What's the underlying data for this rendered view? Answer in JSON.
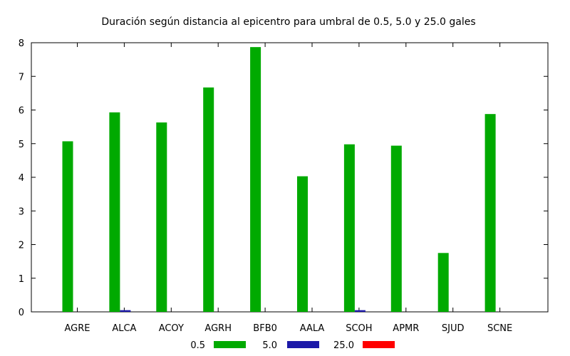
{
  "chart_data": {
    "type": "bar",
    "title": "Duración según distancia al epicentro para umbral de 0.5, 5.0 y 25.0 gales",
    "xlabel": "",
    "ylabel": "",
    "categories": [
      "AGRE",
      "ALCA",
      "ACOY",
      "AGRH",
      "BFB0",
      "AALA",
      "SCOH",
      "APMR",
      "SJUD",
      "SCNE"
    ],
    "ylim": [
      0,
      8
    ],
    "yticks": [
      "0",
      "1",
      "2",
      "3",
      "4",
      "5",
      "6",
      "7",
      "8"
    ],
    "grid": false,
    "legend_position": "bottom",
    "series": [
      {
        "name": "0.5",
        "color": "#00aa00",
        "values": [
          5.07,
          5.93,
          5.63,
          6.67,
          7.87,
          4.03,
          4.98,
          4.94,
          1.75,
          5.88
        ]
      },
      {
        "name": "5.0",
        "color": "#1c19a8",
        "values": [
          0,
          0.05,
          0,
          0,
          0,
          0,
          0.05,
          0,
          0,
          0
        ]
      },
      {
        "name": "25.0",
        "color": "#ff0000",
        "values": [
          0,
          0,
          0,
          0,
          0,
          0,
          0,
          0,
          0,
          0
        ]
      }
    ]
  }
}
